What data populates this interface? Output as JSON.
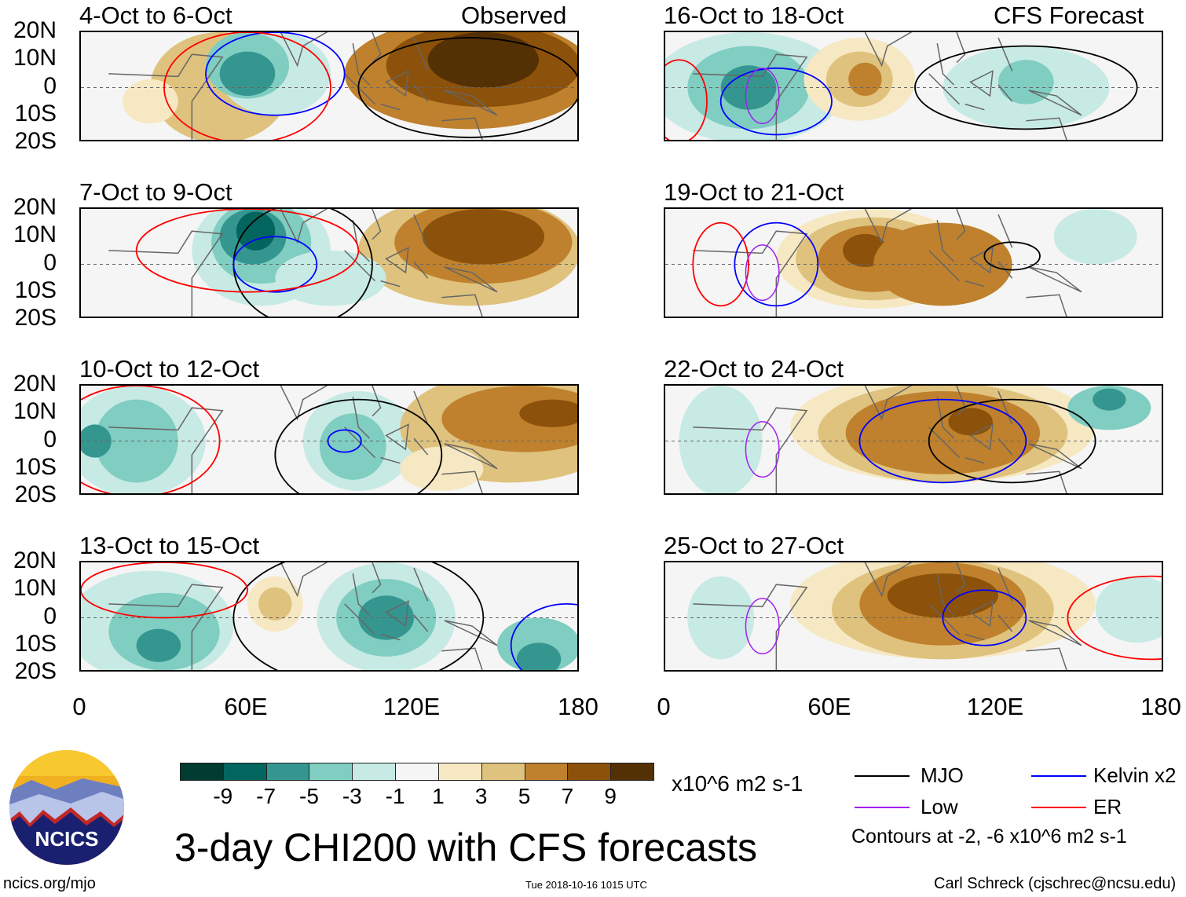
{
  "title": "3-day CHI200 with CFS forecasts",
  "observed_label": "Observed",
  "forecast_label": "CFS Forecast",
  "lat_labels": [
    "20N",
    "10N",
    "0",
    "10S",
    "20S"
  ],
  "lon_labels": [
    "0",
    "60E",
    "120E",
    "180"
  ],
  "panels": [
    {
      "title": "4-Oct to 6-Oct",
      "column": "observed"
    },
    {
      "title": "7-Oct to 9-Oct",
      "column": "observed"
    },
    {
      "title": "10-Oct to 12-Oct",
      "column": "observed"
    },
    {
      "title": "13-Oct to 15-Oct",
      "column": "observed"
    },
    {
      "title": "16-Oct to 18-Oct",
      "column": "forecast"
    },
    {
      "title": "19-Oct to 21-Oct",
      "column": "forecast"
    },
    {
      "title": "22-Oct to 24-Oct",
      "column": "forecast"
    },
    {
      "title": "25-Oct to 27-Oct",
      "column": "forecast"
    }
  ],
  "colorbar": {
    "labels": [
      "-9",
      "-7",
      "-5",
      "-3",
      "-1",
      "1",
      "3",
      "5",
      "7",
      "9"
    ],
    "colors": [
      "#013c33",
      "#03665e",
      "#359690",
      "#80cdc1",
      "#c7eae5",
      "#f5f5f5",
      "#f6e8c3",
      "#dfc27d",
      "#bf812d",
      "#8c510a",
      "#543005"
    ],
    "units": "x10^6 m2 s-1"
  },
  "legend": {
    "items": [
      {
        "label": "MJO",
        "color": "#000000"
      },
      {
        "label": "Kelvin x2",
        "color": "#0000ff"
      },
      {
        "label": "Low",
        "color": "#a020f0"
      },
      {
        "label": "ER",
        "color": "#ff0000"
      }
    ],
    "note": "Contours at -2, -6 x10^6 m2 s-1"
  },
  "logo_text": "NCICS",
  "footer": {
    "url": "ncics.org/mjo",
    "timestamp": "Tue 2018-10-16 1015 UTC",
    "credit": "Carl Schreck (cjschrec@ncsu.edu)"
  }
}
